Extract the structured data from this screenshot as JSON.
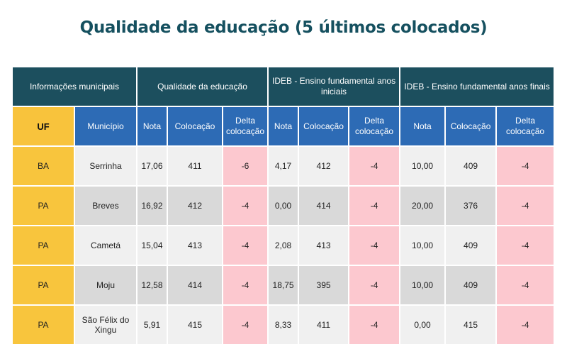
{
  "title": "Qualidade da educação (5 últimos colocados)",
  "groups": {
    "municipal": "Informações municipais",
    "quality": "Qualidade da educação",
    "ideb_initial": "IDEB - Ensino fundamental anos iniciais",
    "ideb_final": "IDEB - Ensino fundamental anos finais"
  },
  "columns": {
    "uf": "UF",
    "municipio": "Município",
    "q_nota": "Nota",
    "q_colocacao": "Colocação",
    "q_delta": "Delta colocação",
    "i_nota": "Nota",
    "i_colocacao": "Colocação",
    "i_delta": "Delta colocação",
    "f_nota": "Nota",
    "f_colocacao": "Colocação",
    "f_delta": "Delta colocação"
  },
  "rows": [
    {
      "uf": "BA",
      "municipio": "Serrinha",
      "q_nota": "17,06",
      "q_colocacao": "411",
      "q_delta": "-6",
      "i_nota": "4,17",
      "i_colocacao": "412",
      "i_delta": "-4",
      "f_nota": "10,00",
      "f_colocacao": "409",
      "f_delta": "-4"
    },
    {
      "uf": "PA",
      "municipio": "Breves",
      "q_nota": "16,92",
      "q_colocacao": "412",
      "q_delta": "-4",
      "i_nota": "0,00",
      "i_colocacao": "414",
      "i_delta": "-4",
      "f_nota": "20,00",
      "f_colocacao": "376",
      "f_delta": "-4"
    },
    {
      "uf": "PA",
      "municipio": "Cametá",
      "q_nota": "15,04",
      "q_colocacao": "413",
      "q_delta": "-4",
      "i_nota": "2,08",
      "i_colocacao": "413",
      "i_delta": "-4",
      "f_nota": "10,00",
      "f_colocacao": "409",
      "f_delta": "-4"
    },
    {
      "uf": "PA",
      "municipio": "Moju",
      "q_nota": "12,58",
      "q_colocacao": "414",
      "q_delta": "-4",
      "i_nota": "18,75",
      "i_colocacao": "395",
      "i_delta": "-4",
      "f_nota": "10,00",
      "f_colocacao": "409",
      "f_delta": "-4"
    },
    {
      "uf": "PA",
      "municipio": "São Félix do Xingu",
      "q_nota": "5,91",
      "q_colocacao": "415",
      "q_delta": "-4",
      "i_nota": "8,33",
      "i_colocacao": "411",
      "i_delta": "-4",
      "f_nota": "0,00",
      "f_colocacao": "415",
      "f_delta": "-4"
    }
  ],
  "colors": {
    "header_dark": "#1c4f5e",
    "header_blue": "#2d6bb5",
    "uf_yellow": "#f8c53d",
    "delta_pink": "#fcc8cf",
    "title": "#15505f"
  }
}
